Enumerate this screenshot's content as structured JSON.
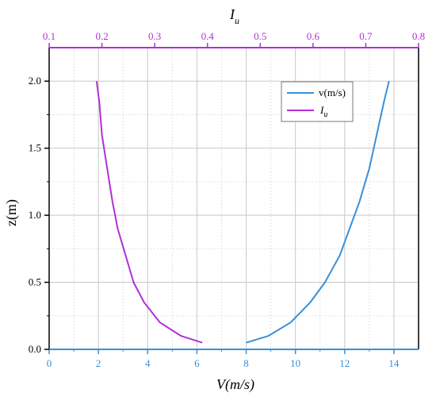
{
  "colors": {
    "v_series": "#3a8fd8",
    "iu_series": "#b030d8",
    "grid_major": "#c8c8c8",
    "grid_minor": "#e2e2e2",
    "frame": "#000000"
  },
  "chart_data": {
    "type": "line",
    "xlabel_bottom": "V(m/s)",
    "xlabel_top_main": "I",
    "xlabel_top_sub": "u",
    "ylabel": "z(m)",
    "xlim_bottom": [
      0,
      15
    ],
    "xlim_top": [
      0.1,
      0.8
    ],
    "ylim": [
      0,
      2.25
    ],
    "grid": true,
    "legend_position": "top-right",
    "ticks_bottom": [
      "0",
      "2",
      "4",
      "6",
      "8",
      "10",
      "12",
      "14"
    ],
    "ticks_top": [
      "0.1",
      "0.2",
      "0.3",
      "0.4",
      "0.5",
      "0.6",
      "0.7",
      "0.8"
    ],
    "ticks_left": [
      "0.0",
      "0.5",
      "1.0",
      "1.5",
      "2.0"
    ],
    "series": [
      {
        "name": "v(m/s)",
        "axis": "bottom",
        "color": "#3a8fd8",
        "x": [
          8.0,
          8.9,
          9.8,
          10.6,
          11.2,
          11.8,
          12.2,
          12.6,
          13.0,
          13.3,
          13.6,
          13.8
        ],
        "y": [
          0.05,
          0.1,
          0.2,
          0.35,
          0.5,
          0.7,
          0.9,
          1.1,
          1.35,
          1.6,
          1.85,
          2.0
        ]
      },
      {
        "name": "I_u",
        "name_main": "I",
        "name_sub": "u",
        "axis": "top",
        "color": "#b030d8",
        "x": [
          0.39,
          0.35,
          0.31,
          0.28,
          0.26,
          0.245,
          0.23,
          0.22,
          0.21,
          0.2,
          0.195,
          0.19
        ],
        "y": [
          0.05,
          0.1,
          0.2,
          0.35,
          0.5,
          0.7,
          0.9,
          1.1,
          1.35,
          1.6,
          1.85,
          2.0
        ]
      }
    ]
  }
}
